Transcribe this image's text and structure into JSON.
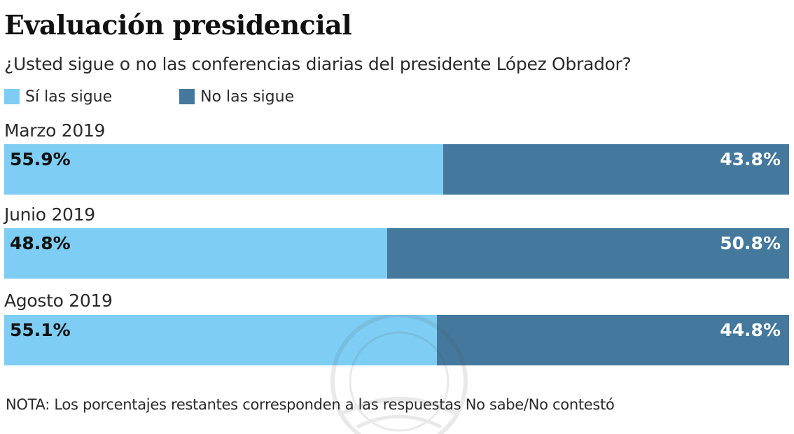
{
  "chart_data": {
    "type": "bar",
    "orientation": "horizontal",
    "stacked": true,
    "title": "Evaluación presidencial",
    "subtitle": "¿Usted sigue o no las conferencias diarias del presidente López Obrador?",
    "categories": [
      "Marzo 2019",
      "Junio 2019",
      "Agosto 2019"
    ],
    "series": [
      {
        "name": "Sí las sigue",
        "color": "#7ECDF4",
        "values": [
          55.9,
          48.8,
          55.1
        ],
        "labels": [
          "55.9%",
          "48.8%",
          "55.1%"
        ]
      },
      {
        "name": "No las sigue",
        "color": "#44789D",
        "values": [
          43.8,
          50.8,
          44.8
        ],
        "labels": [
          "43.8%",
          "50.8%",
          "44.8%"
        ]
      }
    ],
    "legend": "top-left",
    "xlabel": "",
    "ylabel": "",
    "grid": false,
    "note": "NOTA: Los porcentajes restantes corresponden a las respuestas No sabe/No contestó"
  }
}
